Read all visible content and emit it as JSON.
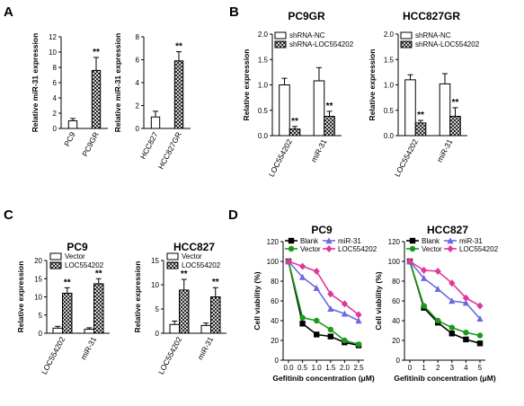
{
  "panel_labels": [
    "A",
    "B",
    "C",
    "D"
  ],
  "colors": {
    "blank": "#000000",
    "vector": "#1a9a1a",
    "mir31": "#6a6ae0",
    "loc": "#e0379a",
    "axis": "#000000"
  },
  "chart_data": [
    {
      "id": "A1",
      "panel": "A",
      "type": "bar",
      "title": "",
      "xlabel": "",
      "ylabel": "Relative miR-31 expression",
      "ylim": [
        0,
        12
      ],
      "yticks": [
        0,
        2,
        4,
        6,
        8,
        10,
        12
      ],
      "categories": [
        "PC9",
        "PC9GR"
      ],
      "series": [
        {
          "name": "",
          "values": [
            1.0,
            7.6
          ],
          "errors": [
            0.3,
            1.7
          ],
          "fills": [
            "white",
            "hatch"
          ]
        }
      ],
      "annotations": [
        {
          "index": 1,
          "series": 0,
          "text": "**"
        }
      ]
    },
    {
      "id": "A2",
      "panel": "A",
      "type": "bar",
      "title": "",
      "xlabel": "",
      "ylabel": "Relative miR-31 expression",
      "ylim": [
        0,
        8
      ],
      "yticks": [
        0,
        2,
        4,
        6,
        8
      ],
      "categories": [
        "HCC827",
        "HCC827GR"
      ],
      "series": [
        {
          "name": "",
          "values": [
            1.0,
            5.9
          ],
          "errors": [
            0.5,
            0.8
          ],
          "fills": [
            "white",
            "hatch"
          ]
        }
      ],
      "annotations": [
        {
          "index": 1,
          "series": 0,
          "text": "**"
        }
      ]
    },
    {
      "id": "B1",
      "panel": "B",
      "type": "bar",
      "title": "PC9GR",
      "xlabel": "",
      "ylabel": "Relative expression",
      "ylim": [
        0,
        2.0
      ],
      "yticks": [
        0.0,
        0.5,
        1.0,
        1.5,
        2.0
      ],
      "categories": [
        "LOC554202",
        "miR-31"
      ],
      "legend": {
        "position": "top-right"
      },
      "series": [
        {
          "name": "shRNA-NC",
          "values": [
            1.0,
            1.08
          ],
          "errors": [
            0.13,
            0.26
          ],
          "fill": "white"
        },
        {
          "name": "shRNA-LOC554202",
          "values": [
            0.13,
            0.38
          ],
          "errors": [
            0.05,
            0.1
          ],
          "fill": "hatch"
        }
      ],
      "annotations": [
        {
          "index": 0,
          "series": 1,
          "text": "**"
        },
        {
          "index": 1,
          "series": 1,
          "text": "**"
        }
      ]
    },
    {
      "id": "B2",
      "panel": "B",
      "type": "bar",
      "title": "HCC827GR",
      "xlabel": "",
      "ylabel": "Relative expression",
      "ylim": [
        0,
        2.0
      ],
      "yticks": [
        0.0,
        0.5,
        1.0,
        1.5,
        2.0
      ],
      "categories": [
        "LOC554202",
        "miR-31"
      ],
      "legend": {
        "position": "top-right"
      },
      "series": [
        {
          "name": "shRNA-NC",
          "values": [
            1.1,
            1.02
          ],
          "errors": [
            0.1,
            0.2
          ],
          "fill": "white"
        },
        {
          "name": "shRNA-LOC554202",
          "values": [
            0.25,
            0.38
          ],
          "errors": [
            0.05,
            0.17
          ],
          "fill": "hatch"
        }
      ],
      "annotations": [
        {
          "index": 0,
          "series": 1,
          "text": "**"
        },
        {
          "index": 1,
          "series": 1,
          "text": "**"
        }
      ]
    },
    {
      "id": "C1",
      "panel": "C",
      "type": "bar",
      "title": "PC9",
      "xlabel": "",
      "ylabel": "Relative expression",
      "ylim": [
        0,
        20
      ],
      "yticks": [
        0,
        5,
        10,
        15,
        20
      ],
      "categories": [
        "LOC554202",
        "miR-31"
      ],
      "legend": {
        "position": "top-left"
      },
      "series": [
        {
          "name": "Vector",
          "values": [
            1.4,
            1.1
          ],
          "errors": [
            0.5,
            0.4
          ],
          "fill": "white"
        },
        {
          "name": "LOC554202",
          "values": [
            11.0,
            13.6
          ],
          "errors": [
            1.5,
            1.4
          ],
          "fill": "hatch"
        }
      ],
      "annotations": [
        {
          "index": 0,
          "series": 1,
          "text": "**"
        },
        {
          "index": 1,
          "series": 1,
          "text": "**"
        }
      ]
    },
    {
      "id": "C2",
      "panel": "C",
      "type": "bar",
      "title": "HCC827",
      "xlabel": "",
      "ylabel": "Relative expression",
      "ylim": [
        0,
        15
      ],
      "yticks": [
        0,
        5,
        10,
        15
      ],
      "categories": [
        "LOC554202",
        "miR-31"
      ],
      "legend": {
        "position": "top-left"
      },
      "series": [
        {
          "name": "Vector",
          "values": [
            1.8,
            1.6
          ],
          "errors": [
            0.7,
            0.5
          ],
          "fill": "white"
        },
        {
          "name": "LOC554202",
          "values": [
            8.9,
            7.5
          ],
          "errors": [
            2.2,
            1.9
          ],
          "fill": "hatch"
        }
      ],
      "annotations": [
        {
          "index": 0,
          "series": 1,
          "text": "**"
        },
        {
          "index": 1,
          "series": 1,
          "text": "**"
        }
      ]
    },
    {
      "id": "D1",
      "panel": "D",
      "type": "line",
      "title": "PC9",
      "xlabel": "Gefitinib concentration (μM)",
      "ylabel": "Cell viability (%)",
      "xlim": [
        0,
        2.5
      ],
      "xticks": [
        "0.0",
        "0.5",
        "1.0",
        "1.5",
        "2.0",
        "2.5"
      ],
      "x": [
        0.0,
        0.5,
        1.0,
        1.5,
        2.0,
        2.5
      ],
      "ylim": [
        0,
        120
      ],
      "yticks": [
        0,
        20,
        40,
        60,
        80,
        100,
        120
      ],
      "legend": {
        "position": "top"
      },
      "series": [
        {
          "name": "Blank",
          "values": [
            100,
            37,
            26,
            24,
            18,
            15
          ],
          "color": "#000000",
          "marker": "square"
        },
        {
          "name": "Vector",
          "values": [
            100,
            43,
            40,
            31,
            20,
            16
          ],
          "color": "#1a9a1a",
          "marker": "circle"
        },
        {
          "name": "miR-31",
          "values": [
            100,
            84,
            73,
            52,
            47,
            40
          ],
          "color": "#6a6ae0",
          "marker": "triangle"
        },
        {
          "name": "LOC554202",
          "values": [
            100,
            95,
            90,
            67,
            57,
            46
          ],
          "color": "#e0379a",
          "marker": "diamond"
        }
      ]
    },
    {
      "id": "D2",
      "panel": "D",
      "type": "line",
      "title": "HCC827",
      "xlabel": "Gefitinib concentration (μM)",
      "ylabel": "Cell viability (%)",
      "xlim": [
        0,
        5
      ],
      "xticks": [
        "0",
        "1",
        "2",
        "3",
        "4",
        "5"
      ],
      "x": [
        0,
        1,
        2,
        3,
        4,
        5
      ],
      "ylim": [
        0,
        120
      ],
      "yticks": [
        0,
        20,
        40,
        60,
        80,
        100,
        120
      ],
      "legend": {
        "position": "top"
      },
      "series": [
        {
          "name": "Blank",
          "values": [
            100,
            53,
            38,
            27,
            21,
            17
          ],
          "color": "#000000",
          "marker": "square"
        },
        {
          "name": "Vector",
          "values": [
            100,
            55,
            40,
            33,
            28,
            25
          ],
          "color": "#1a9a1a",
          "marker": "circle"
        },
        {
          "name": "miR-31",
          "values": [
            100,
            83,
            72,
            60,
            58,
            42
          ],
          "color": "#6a6ae0",
          "marker": "triangle"
        },
        {
          "name": "LOC554202",
          "values": [
            100,
            91,
            90,
            78,
            63,
            55
          ],
          "color": "#e0379a",
          "marker": "diamond"
        }
      ]
    }
  ]
}
